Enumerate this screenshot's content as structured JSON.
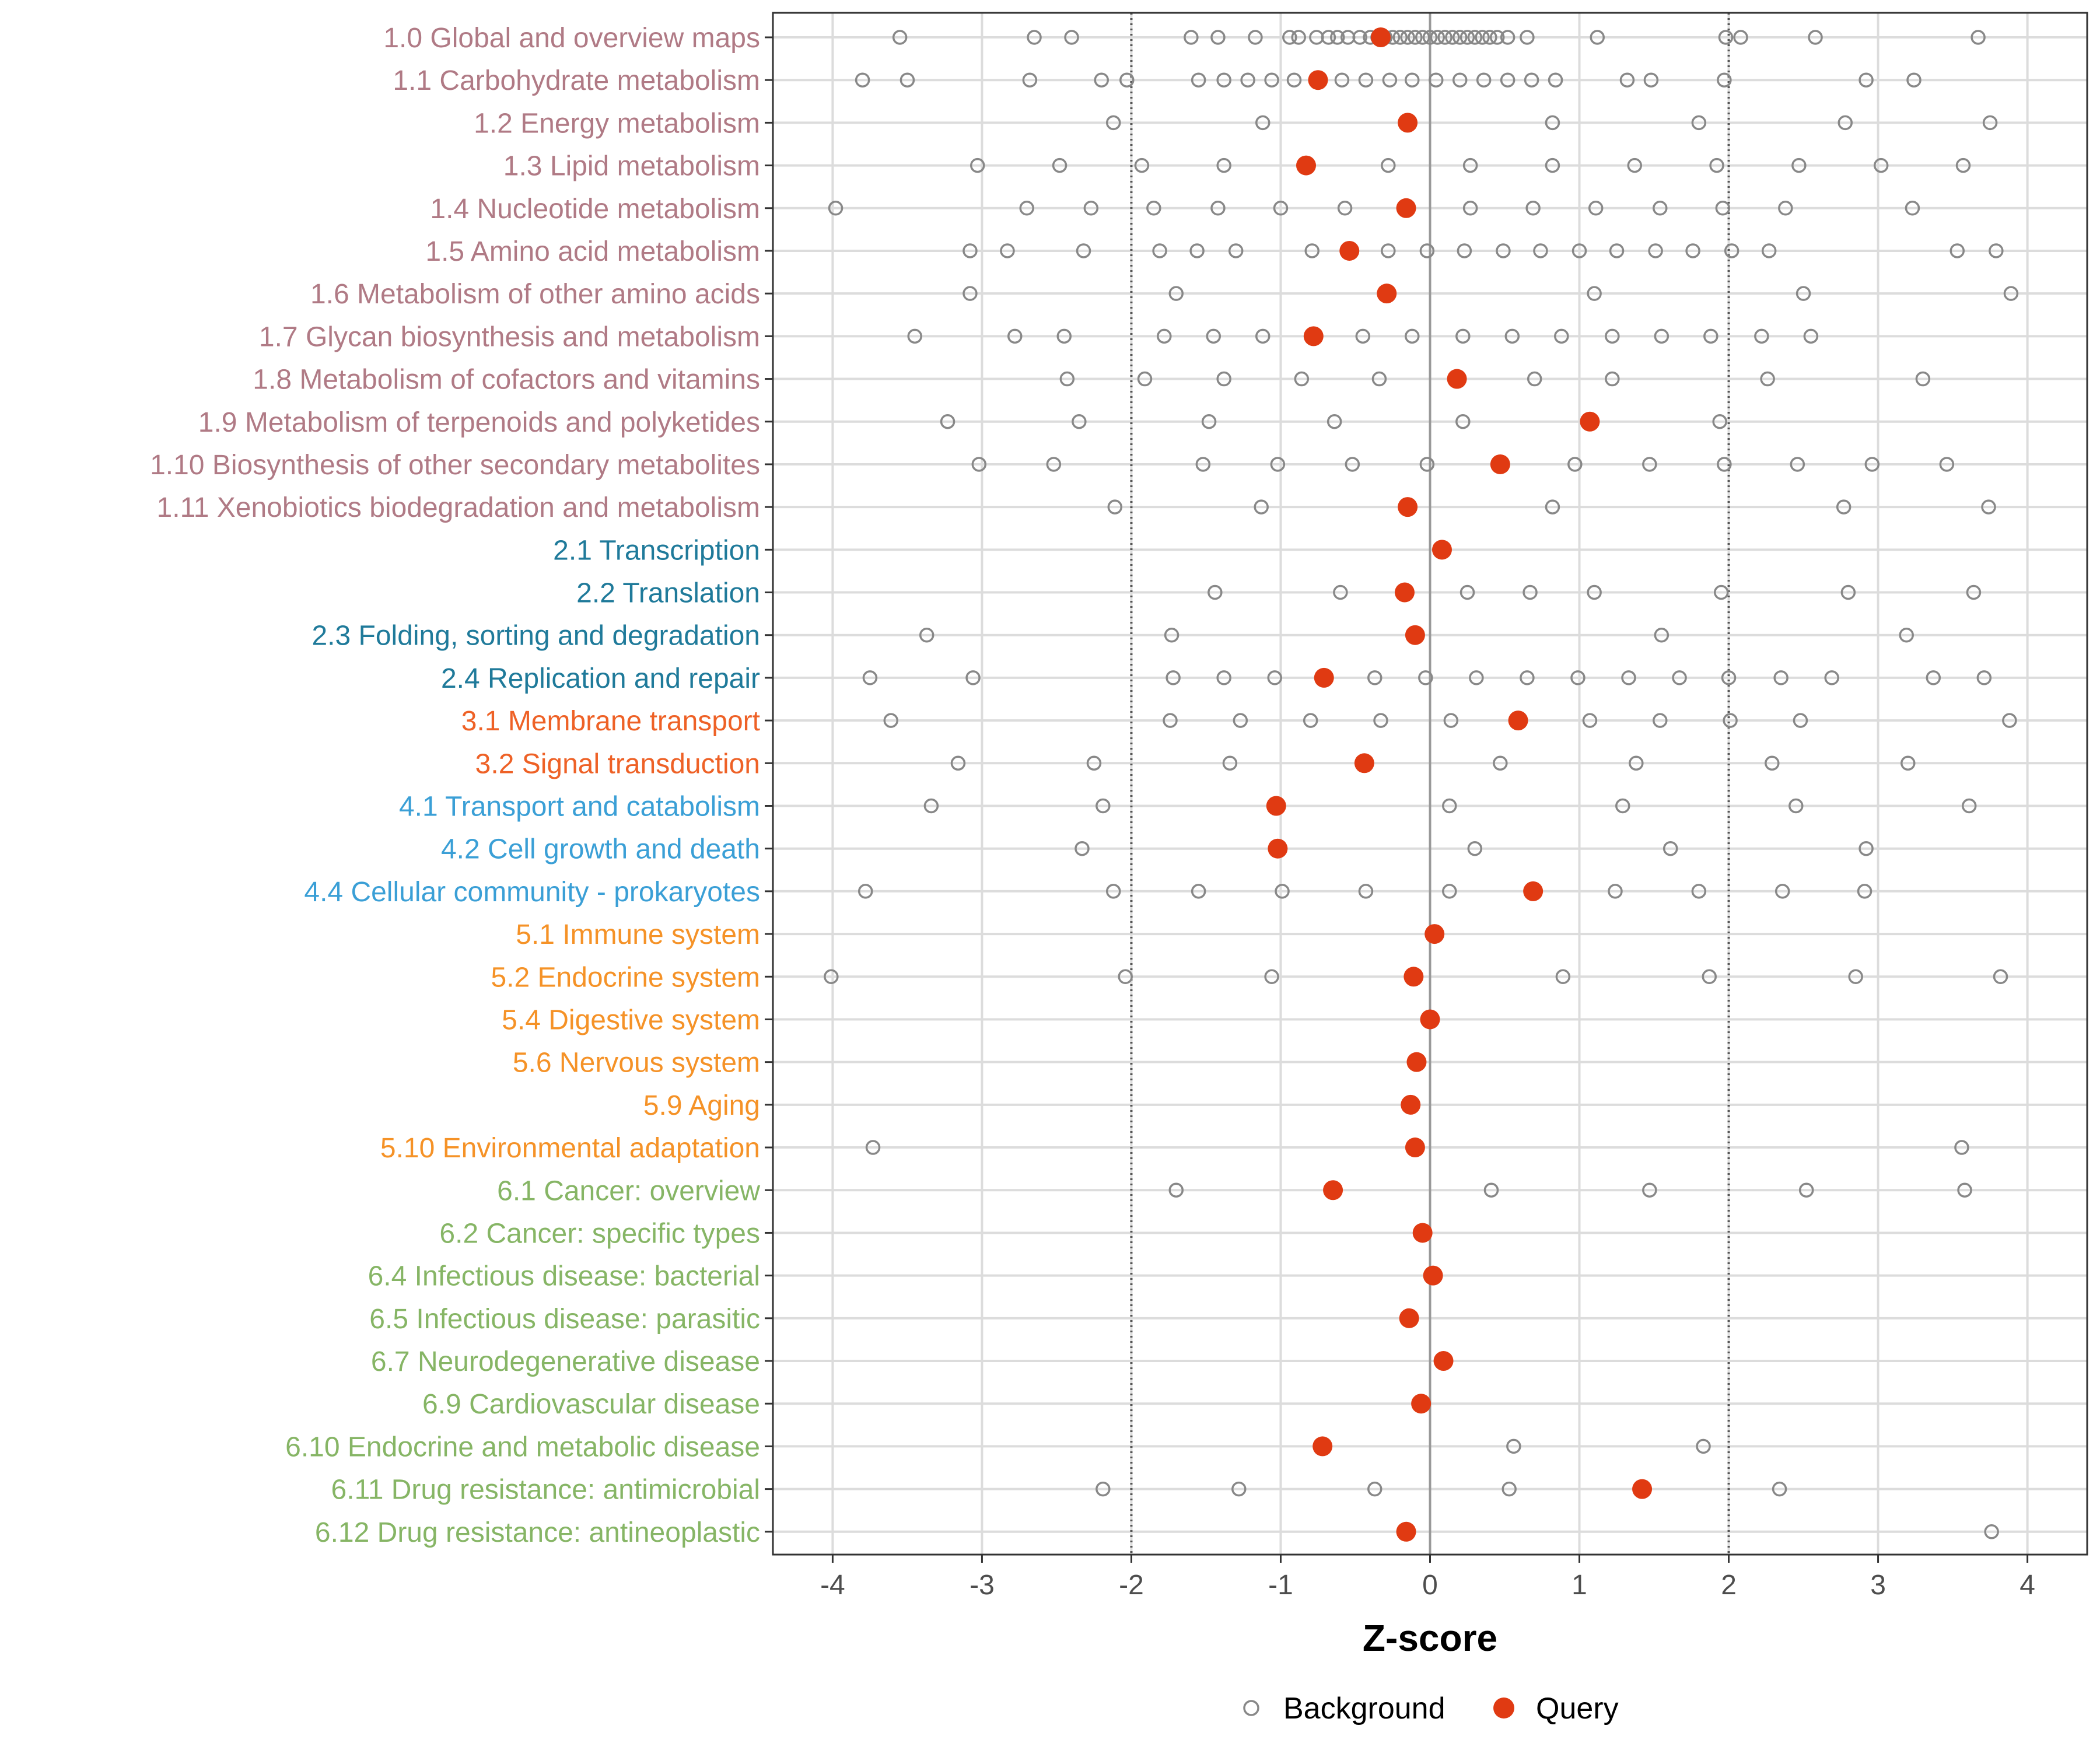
{
  "chart_data": {
    "type": "scatter",
    "xlabel": "Z-score",
    "xlim": [
      -4.4,
      4.4
    ],
    "xticks": [
      -4,
      -3,
      -2,
      -1,
      0,
      1,
      2,
      3,
      4
    ],
    "threshold_lines": [
      -2,
      2
    ],
    "zero_line": 0,
    "legend": {
      "position": "bottom",
      "entries": [
        {
          "key": "background",
          "label": "Background"
        },
        {
          "key": "query",
          "label": "Query"
        }
      ]
    },
    "colors": {
      "metabolism": "#b07a85",
      "genetic": "#1f7a9a",
      "environmental": "#ee6126",
      "cellular": "#3a9fd6",
      "organismal": "#f59227",
      "disease": "#86b565",
      "query": "#e03a12",
      "background": "#888888"
    },
    "categories": [
      {
        "label": "1.0 Global and overview maps",
        "group": "metabolism",
        "query": -0.33,
        "background": [
          -3.55,
          -2.65,
          -2.4,
          -1.6,
          -1.42,
          -1.17,
          -0.94,
          -0.88,
          -0.76,
          -0.68,
          -0.62,
          -0.55,
          -0.47,
          -0.4,
          -0.35,
          -0.3,
          -0.25,
          -0.2,
          -0.15,
          -0.1,
          -0.05,
          0,
          0.05,
          0.1,
          0.15,
          0.2,
          0.25,
          0.3,
          0.35,
          0.4,
          0.45,
          0.52,
          0.65,
          1.12,
          1.98,
          2.08,
          2.58,
          3.67
        ]
      },
      {
        "label": "1.1 Carbohydrate metabolism",
        "group": "metabolism",
        "query": -0.75,
        "background": [
          -3.8,
          -3.5,
          -2.68,
          -2.2,
          -2.03,
          -1.55,
          -1.38,
          -1.22,
          -1.06,
          -0.91,
          -0.59,
          -0.43,
          -0.27,
          -0.12,
          0.04,
          0.2,
          0.36,
          0.52,
          0.68,
          0.84,
          1.32,
          1.48,
          1.97,
          2.92,
          3.24
        ]
      },
      {
        "label": "1.2 Energy metabolism",
        "group": "metabolism",
        "query": -0.15,
        "background": [
          -2.12,
          -1.12,
          0.82,
          1.8,
          2.78,
          3.75
        ]
      },
      {
        "label": "1.3 Lipid metabolism",
        "group": "metabolism",
        "query": -0.83,
        "background": [
          -3.03,
          -2.48,
          -1.93,
          -1.38,
          -0.28,
          0.27,
          0.82,
          1.37,
          1.92,
          2.47,
          3.02,
          3.57
        ]
      },
      {
        "label": "1.4 Nucleotide metabolism",
        "group": "metabolism",
        "query": -0.16,
        "background": [
          -3.98,
          -2.7,
          -2.27,
          -1.85,
          -1.42,
          -1.0,
          -0.57,
          0.27,
          0.69,
          1.11,
          1.54,
          1.96,
          2.38,
          3.23
        ]
      },
      {
        "label": "1.5 Amino acid metabolism",
        "group": "metabolism",
        "query": -0.54,
        "background": [
          -3.08,
          -2.83,
          -2.32,
          -1.81,
          -1.56,
          -1.3,
          -0.79,
          -0.28,
          -0.02,
          0.23,
          0.49,
          0.74,
          1.0,
          1.25,
          1.51,
          1.76,
          2.02,
          2.27,
          3.53,
          3.79
        ]
      },
      {
        "label": "1.6 Metabolism of other amino acids",
        "group": "metabolism",
        "query": -0.29,
        "background": [
          -3.08,
          -1.7,
          1.1,
          2.5,
          3.89
        ]
      },
      {
        "label": "1.7 Glycan biosynthesis and metabolism",
        "group": "metabolism",
        "query": -0.78,
        "background": [
          -3.45,
          -2.78,
          -2.45,
          -1.78,
          -1.45,
          -1.12,
          -0.45,
          -0.12,
          0.22,
          0.55,
          0.88,
          1.22,
          1.55,
          1.88,
          2.22,
          2.55
        ]
      },
      {
        "label": "1.8 Metabolism of cofactors and vitamins",
        "group": "metabolism",
        "query": 0.18,
        "background": [
          -2.43,
          -1.91,
          -1.38,
          -0.86,
          -0.34,
          0.7,
          1.22,
          2.26,
          3.3
        ]
      },
      {
        "label": "1.9 Metabolism of terpenoids and polyketides",
        "group": "metabolism",
        "query": 1.07,
        "background": [
          -3.23,
          -2.35,
          -1.48,
          -0.64,
          0.22,
          1.94
        ]
      },
      {
        "label": "1.10 Biosynthesis of other secondary metabolites",
        "group": "metabolism",
        "query": 0.47,
        "background": [
          -3.02,
          -2.52,
          -1.52,
          -1.02,
          -0.52,
          -0.02,
          0.97,
          1.47,
          1.97,
          2.46,
          2.96,
          3.46
        ]
      },
      {
        "label": "1.11 Xenobiotics biodegradation and metabolism",
        "group": "metabolism",
        "query": -0.15,
        "background": [
          -2.11,
          -1.13,
          0.82,
          2.77,
          3.74
        ]
      },
      {
        "label": "2.1 Transcription",
        "group": "genetic",
        "query": 0.08,
        "background": []
      },
      {
        "label": "2.2 Translation",
        "group": "genetic",
        "query": -0.17,
        "background": [
          -1.44,
          -0.6,
          0.25,
          0.67,
          1.1,
          1.95,
          2.8,
          3.64
        ]
      },
      {
        "label": "2.3 Folding, sorting and degradation",
        "group": "genetic",
        "query": -0.1,
        "background": [
          -3.37,
          -1.73,
          1.55,
          3.19
        ]
      },
      {
        "label": "2.4 Replication and repair",
        "group": "genetic",
        "query": -0.71,
        "background": [
          -3.75,
          -3.06,
          -1.72,
          -1.38,
          -1.04,
          -0.37,
          -0.03,
          0.31,
          0.65,
          0.99,
          1.33,
          1.67,
          2.0,
          2.35,
          2.69,
          3.37,
          3.71
        ]
      },
      {
        "label": "3.1 Membrane transport",
        "group": "environmental",
        "query": 0.59,
        "background": [
          -3.61,
          -1.74,
          -1.27,
          -0.8,
          -0.33,
          0.14,
          1.07,
          1.54,
          2.01,
          2.48,
          3.88
        ]
      },
      {
        "label": "3.2 Signal transduction",
        "group": "environmental",
        "query": -0.44,
        "background": [
          -3.16,
          -2.25,
          -1.34,
          0.47,
          1.38,
          2.29,
          3.2
        ]
      },
      {
        "label": "4.1 Transport and catabolism",
        "group": "cellular",
        "query": -1.03,
        "background": [
          -3.34,
          -2.19,
          0.13,
          1.29,
          2.45,
          3.61
        ]
      },
      {
        "label": "4.2 Cell growth and death",
        "group": "cellular",
        "query": -1.02,
        "background": [
          -2.33,
          0.3,
          1.61,
          2.92
        ]
      },
      {
        "label": "4.4 Cellular community - prokaryotes",
        "group": "cellular",
        "query": 0.69,
        "background": [
          -3.78,
          -2.12,
          -1.55,
          -0.99,
          -0.43,
          0.13,
          1.24,
          1.8,
          2.36,
          2.91
        ]
      },
      {
        "label": "5.1 Immune system",
        "group": "organismal",
        "query": 0.03,
        "background": []
      },
      {
        "label": "5.2 Endocrine system",
        "group": "organismal",
        "query": -0.11,
        "background": [
          -4.01,
          -2.04,
          -1.06,
          0.89,
          1.87,
          2.85,
          3.82
        ]
      },
      {
        "label": "5.4 Digestive system",
        "group": "organismal",
        "query": 0.0,
        "background": []
      },
      {
        "label": "5.6 Nervous system",
        "group": "organismal",
        "query": -0.09,
        "background": []
      },
      {
        "label": "5.9 Aging",
        "group": "organismal",
        "query": -0.13,
        "background": []
      },
      {
        "label": "5.10 Environmental adaptation",
        "group": "organismal",
        "query": -0.1,
        "background": [
          -3.73,
          3.56
        ]
      },
      {
        "label": "6.1 Cancer: overview",
        "group": "disease",
        "query": -0.65,
        "background": [
          -1.7,
          0.41,
          1.47,
          2.52,
          3.58
        ]
      },
      {
        "label": "6.2 Cancer: specific types",
        "group": "disease",
        "query": -0.05,
        "background": []
      },
      {
        "label": "6.4 Infectious disease: bacterial",
        "group": "disease",
        "query": 0.02,
        "background": []
      },
      {
        "label": "6.5 Infectious disease: parasitic",
        "group": "disease",
        "query": -0.14,
        "background": []
      },
      {
        "label": "6.7 Neurodegenerative disease",
        "group": "disease",
        "query": 0.09,
        "background": []
      },
      {
        "label": "6.9 Cardiovascular disease",
        "group": "disease",
        "query": -0.06,
        "background": []
      },
      {
        "label": "6.10 Endocrine and metabolic disease",
        "group": "disease",
        "query": -0.72,
        "background": [
          0.56,
          1.83
        ]
      },
      {
        "label": "6.11 Drug resistance: antimicrobial",
        "group": "disease",
        "query": 1.42,
        "background": [
          -2.19,
          -1.28,
          -0.37,
          0.53,
          2.34
        ]
      },
      {
        "label": "6.12 Drug resistance: antineoplastic",
        "group": "disease",
        "query": -0.16,
        "background": [
          3.76
        ]
      }
    ]
  }
}
